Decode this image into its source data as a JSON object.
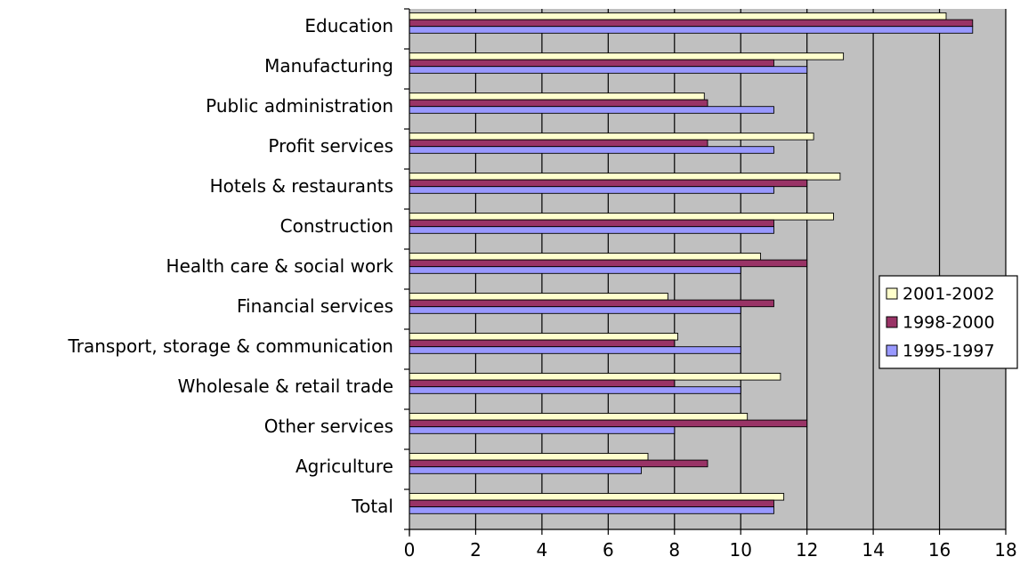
{
  "chart_data": {
    "type": "bar",
    "orientation": "horizontal",
    "categories": [
      "Education",
      "Manufacturing",
      "Public administration",
      "Profit services",
      "Hotels & restaurants",
      "Construction",
      "Health care & social work",
      "Financial services",
      "Transport, storage & communication",
      "Wholesale & retail trade",
      "Other services",
      "Agriculture",
      "Total"
    ],
    "series": [
      {
        "name": "2001-2002",
        "color": "#ffffcc",
        "values": [
          16.2,
          13.1,
          8.9,
          12.2,
          13.0,
          12.8,
          10.6,
          7.8,
          8.1,
          11.2,
          10.2,
          7.2,
          11.3
        ]
      },
      {
        "name": "1998-2000",
        "color": "#993366",
        "values": [
          17,
          11,
          9,
          9,
          12,
          11,
          12,
          11,
          8,
          8,
          12,
          9,
          11
        ]
      },
      {
        "name": "1995-1997",
        "color": "#9999ff",
        "values": [
          17,
          12,
          11,
          11,
          11,
          11,
          10,
          10,
          10,
          10,
          8,
          7,
          11
        ]
      }
    ],
    "xlim": [
      0,
      18
    ],
    "x_ticks": [
      0,
      2,
      4,
      6,
      8,
      10,
      12,
      14,
      16,
      18
    ],
    "grid": true,
    "plot_background": "#c0c0c0",
    "legend_position": "right"
  }
}
